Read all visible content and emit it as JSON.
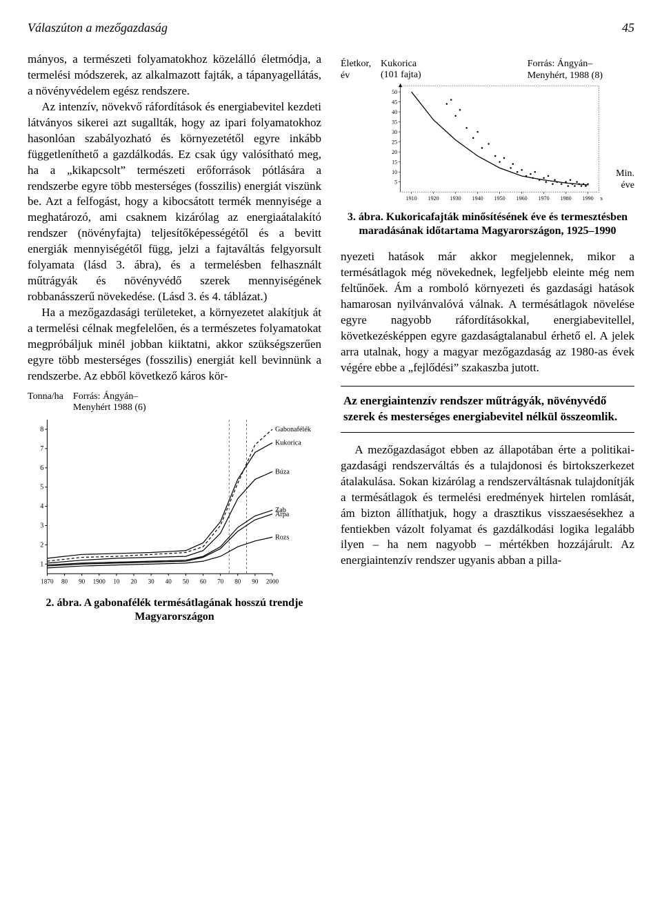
{
  "page": {
    "running_head": "Válaszúton a mezőgazdaság",
    "page_number": "45"
  },
  "left_column": {
    "para1": "mányos, a természeti folyamatokhoz közelálló életmódja, a termelési módszerek, az alkalmazott fajták, a tápanyagellátás, a növényvédelem egész rendszere.",
    "para2": "Az intenzív, növekvő ráfordítások és energiabevitel kezdeti látványos sikerei azt sugallták, hogy az ipari folyamatokhoz hasonlóan szabályozható és környezetétől egyre inkább függetleníthető a gazdálkodás. Ez csak úgy valósítható meg, ha a „kikapcsolt” természeti erőforrások pótlására a rendszerbe egyre több mesterséges (fosszilis) energiát viszünk be. Azt a felfogást, hogy a kibocsátott termék mennyisége a meghatározó, ami csaknem kizárólag az energiaátalakító rendszer (növényfajta) teljesítőképességétől és a bevitt energiák mennyiségétől függ, jelzi a fajtaváltás felgyorsult folyamata (lásd 3. ábra), és a termelésben felhasznált műtrágyák és növényvédő szerek mennyiségének robbanásszerű növekedése. (Lásd 3. és 4. táblázat.)",
    "para3": "Ha a mezőgazdasági területeket, a környezetet alakítjuk át a termelési célnak megfelelően, és a természetes folyamatokat megpróbáljuk minél jobban kiiktatni, akkor szükségszerűen egyre több mesterséges (fosszilis) energiát kell bevinnünk a rendszerbe. Az ebből következő káros kör-"
  },
  "figure2": {
    "y_label": "Tonna/ha",
    "source": "Forrás: Ángyán–\nMenyhért 1988 (6)",
    "caption": "2. ábra. A gabonafélék termésátlagának hosszú trendje Magyarországon",
    "type": "line",
    "x_ticks": [
      "1870",
      "80",
      "90",
      "1900",
      "10",
      "20",
      "30",
      "40",
      "50",
      "60",
      "70",
      "80",
      "90",
      "2000"
    ],
    "y_ticks": [
      1,
      2,
      3,
      4,
      5,
      6,
      7,
      8
    ],
    "xlim": [
      1870,
      2000
    ],
    "ylim": [
      0.5,
      8.5
    ],
    "background_color": "#ffffff",
    "axis_color": "#000000",
    "line_color": "#000000",
    "series": {
      "Gabonafélék": {
        "dash": "4,3",
        "points": [
          [
            1870,
            1.15
          ],
          [
            1890,
            1.35
          ],
          [
            1910,
            1.4
          ],
          [
            1930,
            1.5
          ],
          [
            1950,
            1.6
          ],
          [
            1960,
            1.9
          ],
          [
            1970,
            3.0
          ],
          [
            1980,
            5.2
          ],
          [
            1990,
            7.2
          ],
          [
            2000,
            8.0
          ]
        ]
      },
      "Kukorica": {
        "dash": "",
        "points": [
          [
            1870,
            1.3
          ],
          [
            1890,
            1.5
          ],
          [
            1910,
            1.55
          ],
          [
            1930,
            1.6
          ],
          [
            1950,
            1.7
          ],
          [
            1960,
            2.1
          ],
          [
            1970,
            3.2
          ],
          [
            1980,
            5.4
          ],
          [
            1990,
            6.8
          ],
          [
            2000,
            7.3
          ]
        ]
      },
      "Búza": {
        "dash": "",
        "points": [
          [
            1870,
            1.05
          ],
          [
            1890,
            1.2
          ],
          [
            1910,
            1.3
          ],
          [
            1930,
            1.35
          ],
          [
            1950,
            1.4
          ],
          [
            1960,
            1.7
          ],
          [
            1970,
            2.6
          ],
          [
            1980,
            4.4
          ],
          [
            1990,
            5.4
          ],
          [
            2000,
            5.8
          ]
        ]
      },
      "Zab": {
        "dash": "",
        "points": [
          [
            1870,
            0.95
          ],
          [
            1890,
            1.05
          ],
          [
            1910,
            1.1
          ],
          [
            1930,
            1.15
          ],
          [
            1950,
            1.2
          ],
          [
            1960,
            1.4
          ],
          [
            1970,
            1.9
          ],
          [
            1980,
            2.9
          ],
          [
            1990,
            3.5
          ],
          [
            2000,
            3.8
          ]
        ]
      },
      "Árpa": {
        "dash": "",
        "points": [
          [
            1870,
            0.9
          ],
          [
            1890,
            1.0
          ],
          [
            1910,
            1.05
          ],
          [
            1930,
            1.1
          ],
          [
            1950,
            1.15
          ],
          [
            1960,
            1.35
          ],
          [
            1970,
            1.8
          ],
          [
            1980,
            2.7
          ],
          [
            1990,
            3.3
          ],
          [
            2000,
            3.6
          ]
        ]
      },
      "Rozs": {
        "dash": "",
        "points": [
          [
            1870,
            0.8
          ],
          [
            1890,
            0.9
          ],
          [
            1910,
            0.95
          ],
          [
            1930,
            1.0
          ],
          [
            1950,
            1.05
          ],
          [
            1960,
            1.15
          ],
          [
            1970,
            1.4
          ],
          [
            1980,
            1.9
          ],
          [
            1990,
            2.2
          ],
          [
            2000,
            2.4
          ]
        ]
      }
    },
    "series_labels": [
      "Gabonafélék",
      "Kukorica",
      "Búza",
      "Zab",
      "Árpa",
      "Rozs"
    ]
  },
  "figure3": {
    "y_label": "Életkor,\név",
    "top_label": "Kukorica\n(101 fajta)",
    "right_label": "Min.\néve",
    "x_axis_label": "x",
    "source": "Forrás: Ángyán–\nMenyhért, 1988 (8)",
    "caption": "3. ábra. Kukoricafajták minősítésének éve és termesztésben maradásának időtartama Magyarországon, 1925–1990",
    "type": "scatter-with-curve",
    "x_ticks": [
      1910,
      1920,
      1930,
      1940,
      1950,
      1960,
      1970,
      1980,
      1990
    ],
    "y_ticks": [
      5,
      10,
      15,
      20,
      25,
      30,
      35,
      40,
      45,
      50
    ],
    "xlim": [
      1905,
      1995
    ],
    "ylim": [
      0,
      53
    ],
    "background_color": "#ffffff",
    "axis_color": "#000000",
    "marker_color": "#000000",
    "curve_color": "#000000",
    "curve_points": [
      [
        1910,
        50
      ],
      [
        1920,
        36
      ],
      [
        1930,
        26
      ],
      [
        1940,
        18
      ],
      [
        1950,
        12
      ],
      [
        1960,
        8
      ],
      [
        1970,
        6
      ],
      [
        1980,
        4.5
      ],
      [
        1990,
        3.5
      ]
    ],
    "points": [
      [
        1926,
        44
      ],
      [
        1928,
        46
      ],
      [
        1930,
        38
      ],
      [
        1932,
        41
      ],
      [
        1935,
        32
      ],
      [
        1938,
        27
      ],
      [
        1940,
        30
      ],
      [
        1942,
        22
      ],
      [
        1945,
        24
      ],
      [
        1948,
        18
      ],
      [
        1950,
        15
      ],
      [
        1952,
        17
      ],
      [
        1955,
        12
      ],
      [
        1956,
        14
      ],
      [
        1958,
        10
      ],
      [
        1960,
        11
      ],
      [
        1962,
        8
      ],
      [
        1964,
        9
      ],
      [
        1965,
        7
      ],
      [
        1966,
        10
      ],
      [
        1968,
        6
      ],
      [
        1970,
        7
      ],
      [
        1971,
        5
      ],
      [
        1972,
        8
      ],
      [
        1974,
        4
      ],
      [
        1975,
        6
      ],
      [
        1976,
        5
      ],
      [
        1978,
        4
      ],
      [
        1980,
        5
      ],
      [
        1981,
        3
      ],
      [
        1982,
        6
      ],
      [
        1983,
        4
      ],
      [
        1984,
        3
      ],
      [
        1985,
        5
      ],
      [
        1986,
        4
      ],
      [
        1987,
        3
      ],
      [
        1988,
        4
      ],
      [
        1989,
        3
      ],
      [
        1990,
        4
      ]
    ]
  },
  "right_column": {
    "para1": "nyezeti hatások már akkor megjelennek, mikor a termésátlagok még növekednek, legfeljebb eleinte még nem feltűnőek. Ám a romboló környezeti és gazdasági hatások hamarosan nyilvánvalóvá válnak. A termésátlagok növelése egyre nagyobb ráfordításokkal, energiabevitellel, következésképpen egyre gazdaságtalanabul érhető el. A jelek arra utalnak, hogy a magyar mezőgazdaság az 1980-as évek végére ebbe a „fejlődési” szakaszba jutott.",
    "callout": "Az energiaintenzív rendszer műtrágyák, növényvédő szerek és mesterséges energiabevitel nélkül összeomlik.",
    "para2": "A mezőgazdaságot ebben az állapotában érte a politikai-gazdasági rendszerváltás és a tulajdonosi és birtokszerkezet átalakulása. Sokan kizárólag a rendszerváltásnak tulajdonítják a termésátlagok és termelési eredmények hirtelen romlását, ám bizton állíthatjuk, hogy a drasztikus visszaesésekhez a fentiekben vázolt folyamat és gazdálkodási logika legalább ilyen – ha nem nagyobb – mértékben hozzájárult. Az energiaintenzív rendszer ugyanis abban a pilla-"
  }
}
